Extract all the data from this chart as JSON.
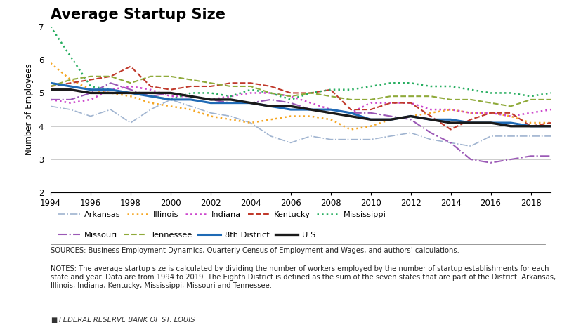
{
  "title": "Average Startup Size",
  "ylabel": "Number of Employees",
  "xlim": [
    1994,
    2019
  ],
  "ylim": [
    2,
    7
  ],
  "yticks": [
    2,
    3,
    4,
    5,
    6,
    7
  ],
  "xticks": [
    1994,
    1996,
    1998,
    2000,
    2002,
    2004,
    2006,
    2008,
    2010,
    2012,
    2014,
    2016,
    2018
  ],
  "years": [
    1994,
    1995,
    1996,
    1997,
    1998,
    1999,
    2000,
    2001,
    2002,
    2003,
    2004,
    2005,
    2006,
    2007,
    2008,
    2009,
    2010,
    2011,
    2012,
    2013,
    2014,
    2015,
    2016,
    2017,
    2018,
    2019
  ],
  "series": {
    "Arkansas": {
      "color": "#a0b4d0",
      "linestyle": "-.",
      "linewidth": 1.2,
      "data": [
        4.6,
        4.5,
        4.3,
        4.5,
        4.1,
        4.5,
        4.8,
        4.6,
        4.4,
        4.3,
        4.1,
        3.7,
        3.5,
        3.7,
        3.6,
        3.6,
        3.6,
        3.7,
        3.8,
        3.6,
        3.5,
        3.4,
        3.7,
        3.7,
        3.7,
        3.7
      ]
    },
    "Illinois": {
      "color": "#f5a623",
      "linestyle": ":",
      "linewidth": 1.8,
      "data": [
        5.9,
        5.4,
        5.1,
        5.0,
        4.9,
        4.7,
        4.6,
        4.5,
        4.3,
        4.2,
        4.1,
        4.2,
        4.3,
        4.3,
        4.2,
        3.9,
        4.0,
        4.2,
        4.3,
        4.4,
        4.5,
        4.4,
        4.4,
        4.3,
        4.1,
        4.1
      ]
    },
    "Indiana": {
      "color": "#cc44cc",
      "linestyle": ":",
      "linewidth": 1.8,
      "data": [
        4.8,
        4.7,
        4.8,
        5.1,
        5.2,
        5.1,
        4.9,
        4.9,
        4.8,
        4.9,
        5.0,
        5.0,
        4.9,
        4.7,
        4.5,
        4.4,
        4.7,
        4.7,
        4.7,
        4.5,
        4.5,
        4.4,
        4.4,
        4.3,
        4.4,
        4.5
      ]
    },
    "Kentucky": {
      "color": "#c0392b",
      "linestyle": "--",
      "linewidth": 1.5,
      "data": [
        5.2,
        5.3,
        5.4,
        5.5,
        5.8,
        5.2,
        5.1,
        5.2,
        5.2,
        5.3,
        5.3,
        5.2,
        5.0,
        5.0,
        5.1,
        4.5,
        4.5,
        4.7,
        4.7,
        4.3,
        3.9,
        4.2,
        4.4,
        4.4,
        4.0,
        4.1
      ]
    },
    "Mississippi": {
      "color": "#27ae60",
      "linestyle": ":",
      "linewidth": 1.8,
      "data": [
        7.0,
        6.1,
        5.2,
        5.1,
        5.0,
        4.9,
        4.8,
        5.0,
        5.0,
        4.9,
        5.1,
        5.0,
        4.8,
        5.0,
        5.1,
        5.1,
        5.2,
        5.3,
        5.3,
        5.2,
        5.2,
        5.1,
        5.0,
        5.0,
        4.9,
        5.0
      ]
    },
    "Missouri": {
      "color": "#9b59b6",
      "linestyle": "-.",
      "linewidth": 1.5,
      "data": [
        4.8,
        4.8,
        5.0,
        5.3,
        5.1,
        4.9,
        5.0,
        4.9,
        4.8,
        4.7,
        4.7,
        4.8,
        4.7,
        4.5,
        4.5,
        4.4,
        4.4,
        4.3,
        4.2,
        3.8,
        3.5,
        3.0,
        2.9,
        3.0,
        3.1,
        3.1
      ]
    },
    "Tennessee": {
      "color": "#8faa3a",
      "linestyle": "--",
      "linewidth": 1.5,
      "data": [
        5.2,
        5.4,
        5.5,
        5.5,
        5.3,
        5.5,
        5.5,
        5.4,
        5.3,
        5.2,
        5.2,
        5.0,
        4.9,
        5.0,
        4.9,
        4.8,
        4.8,
        4.9,
        4.9,
        4.9,
        4.8,
        4.8,
        4.7,
        4.6,
        4.8,
        4.8
      ]
    },
    "8th District": {
      "color": "#1f6ab5",
      "linestyle": "-",
      "linewidth": 2.2,
      "data": [
        5.3,
        5.2,
        5.1,
        5.1,
        5.0,
        4.9,
        4.8,
        4.8,
        4.7,
        4.7,
        4.7,
        4.6,
        4.5,
        4.5,
        4.5,
        4.4,
        4.2,
        4.2,
        4.3,
        4.2,
        4.2,
        4.1,
        4.1,
        4.1,
        4.0,
        4.0
      ]
    },
    "U.S.": {
      "color": "#1a1a1a",
      "linestyle": "-",
      "linewidth": 2.4,
      "data": [
        5.1,
        5.1,
        5.0,
        5.0,
        5.0,
        5.0,
        5.0,
        4.9,
        4.8,
        4.8,
        4.7,
        4.6,
        4.6,
        4.5,
        4.4,
        4.3,
        4.2,
        4.2,
        4.3,
        4.2,
        4.1,
        4.1,
        4.1,
        4.0,
        4.0,
        4.0
      ]
    }
  },
  "sources_text": "SOURCES: Business Employment Dynamics, Quarterly Census of Employment and Wages, and authors’ calculations.",
  "notes_text": "NOTES: The average startup size is calculated by dividing the number of workers employed by the number of startup establishments for each state and year. Data are from 1994 to 2019. The Eighth District is defined as the sum of the seven states that are part of the District: Arkansas, Illinois, Indiana, Kentucky, Mississippi, Missouri and Tennessee.",
  "footer_text": "FEDERAL RESERVE BANK OF ST. LOUIS",
  "background_color": "#ffffff",
  "legend_row1": [
    "Arkansas",
    "Illinois",
    "Indiana",
    "Kentucky",
    "Mississippi"
  ],
  "legend_row2": [
    "Missouri",
    "Tennessee",
    "8th District",
    "U.S."
  ]
}
